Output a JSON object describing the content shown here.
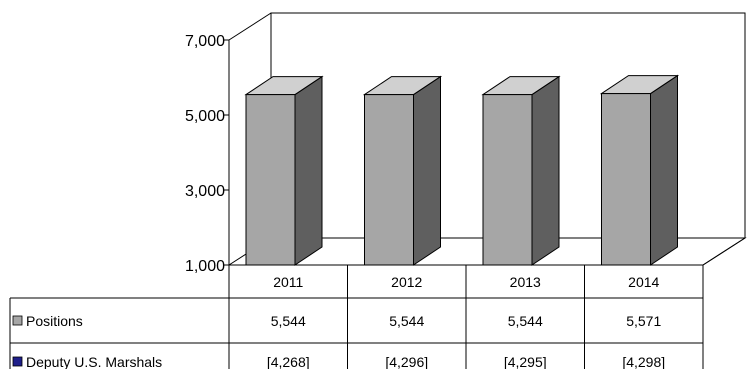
{
  "chart_data": {
    "type": "bar",
    "view": "3d",
    "title": "",
    "xlabel": "",
    "ylabel": "",
    "ylim": [
      1000,
      7000
    ],
    "y_ticks": [
      {
        "value": 1000,
        "label": "1,000"
      },
      {
        "value": 3000,
        "label": "3,000"
      },
      {
        "value": 5000,
        "label": "5,000"
      },
      {
        "value": 7000,
        "label": "7,000"
      }
    ],
    "grid": false,
    "legend": "data-table",
    "categories": [
      "2011",
      "2012",
      "2013",
      "2014"
    ],
    "series": [
      {
        "name": "Positions",
        "color": "#a6a6a6",
        "values": [
          5544,
          5544,
          5544,
          5571
        ],
        "labels": [
          "5,544",
          "5,544",
          "5,544",
          "5,571"
        ]
      },
      {
        "name": "Deputy U.S. Marshals",
        "color": "#1f1f8a",
        "values": [
          4268,
          4296,
          4295,
          4298
        ],
        "labels": [
          "[4,268]",
          "[4,296]",
          "[4,295]",
          "[4,298]"
        ]
      }
    ],
    "colors": {
      "bar_front": "#a6a6a6",
      "bar_side": "#5f5f5f",
      "bar_top": "#d0d0d0"
    }
  }
}
